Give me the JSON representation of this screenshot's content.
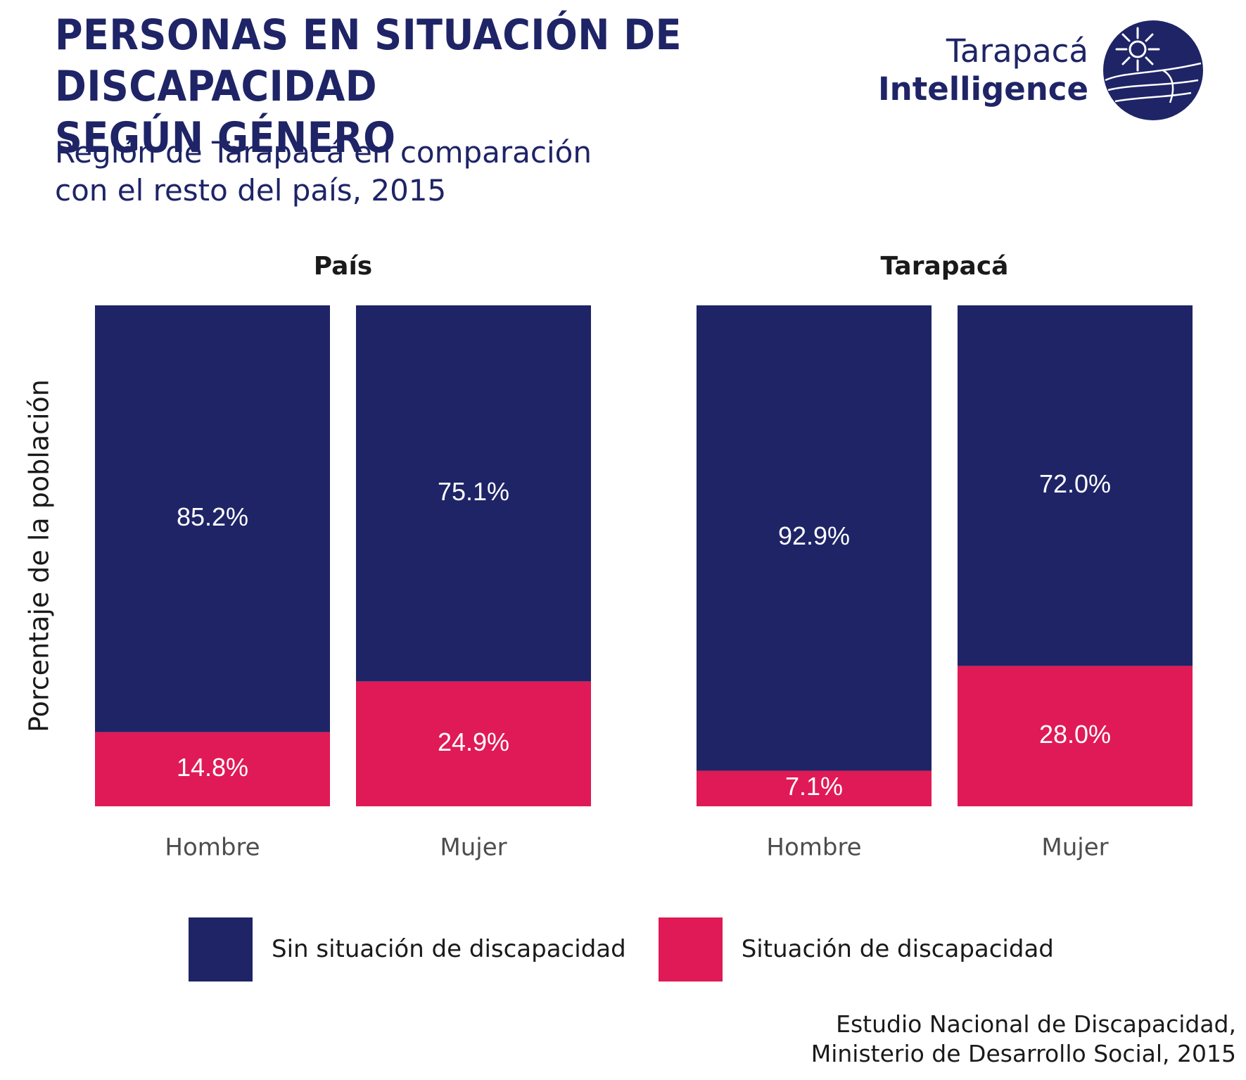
{
  "title": {
    "line1": "PERSONAS EN SITUACIÓN DE DISCAPACIDAD",
    "line2": "SEGÚN GÉNERO"
  },
  "subtitle": {
    "line1": "Región de Tarapacá en comparación",
    "line2": "con el resto del país, 2015"
  },
  "logo": {
    "line1": "Tarapacá",
    "line2": "Intelligence",
    "icon": "globe-sun-icon"
  },
  "colors": {
    "sin": "#1e2466",
    "con": "#e01a56",
    "title": "#1e2466",
    "text": "#1a1a1a",
    "axis_text": "#4d4d4d"
  },
  "chart_data": {
    "type": "bar",
    "stacked": true,
    "ylabel": "Porcentaje de la población",
    "ylim": [
      0,
      100
    ],
    "grid": false,
    "legend_position": "bottom",
    "panels": [
      {
        "title": "País",
        "categories": [
          "Hombre",
          "Mujer"
        ],
        "series": [
          {
            "name": "Situación de discapacidad",
            "values": [
              14.8,
              24.9
            ],
            "labels": [
              "14.8%",
              "24.9%"
            ]
          },
          {
            "name": "Sin situación de discapacidad",
            "values": [
              85.2,
              75.1
            ],
            "labels": [
              "85.2%",
              "75.1%"
            ]
          }
        ]
      },
      {
        "title": "Tarapacá",
        "categories": [
          "Hombre",
          "Mujer"
        ],
        "series": [
          {
            "name": "Situación de discapacidad",
            "values": [
              7.1,
              28.0
            ],
            "labels": [
              "7.1%",
              "28.0%"
            ]
          },
          {
            "name": "Sin situación de discapacidad",
            "values": [
              92.9,
              72.0
            ],
            "labels": [
              "92.9%",
              "72.0%"
            ]
          }
        ]
      }
    ]
  },
  "legend": {
    "items": [
      {
        "label": "Sin situación de discapacidad",
        "color": "#1e2466"
      },
      {
        "label": "Situación de discapacidad",
        "color": "#e01a56"
      }
    ]
  },
  "source": {
    "line1": "Estudio Nacional de Discapacidad,",
    "line2": "Ministerio de Desarrollo Social, 2015"
  }
}
